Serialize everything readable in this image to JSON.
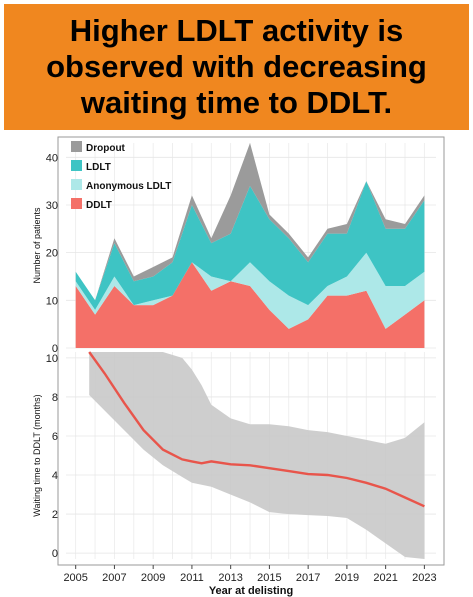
{
  "banner": {
    "lines": [
      "Higher LDLT activity is",
      "observed with decreasing",
      "waiting time to DDLT."
    ]
  },
  "colors": {
    "banner": "#f0871f",
    "dropout": "#9b9b9b",
    "ldlt": "#3ec4c4",
    "anonymous_ldlt": "#ade8e8",
    "ddlt": "#f47068",
    "trend": "#e8554b",
    "ribbon": "#c9c9c9"
  },
  "chart_data": [
    {
      "type": "area",
      "stacked": true,
      "ylabel": "Number of patients",
      "xlabel": "",
      "ylim": [
        0,
        43
      ],
      "yticks": [
        0,
        10,
        20,
        30,
        40
      ],
      "x": [
        2005,
        2006,
        2007,
        2008,
        2009,
        2010,
        2011,
        2012,
        2013,
        2014,
        2015,
        2016,
        2017,
        2018,
        2019,
        2020,
        2021,
        2022,
        2023
      ],
      "legend_position": "top-left",
      "series": [
        {
          "name": "DDLT",
          "color_key": "ddlt",
          "values": [
            13,
            7,
            13,
            9,
            9,
            11,
            18,
            12,
            14,
            13,
            8,
            4,
            6,
            11,
            11,
            12,
            4,
            7,
            10
          ]
        },
        {
          "name": "Anonymous LDLT",
          "color_key": "anonymous_ldlt",
          "values": [
            1,
            1,
            2,
            0,
            1,
            0,
            0,
            3,
            0,
            5,
            6,
            7,
            3,
            2,
            4,
            8,
            9,
            6,
            6
          ]
        },
        {
          "name": "LDLT",
          "color_key": "ldlt",
          "values": [
            2,
            2,
            7,
            5,
            5,
            7,
            12,
            7,
            10,
            16,
            13,
            12,
            9,
            11,
            9,
            15,
            12,
            12,
            15
          ]
        },
        {
          "name": "Dropout",
          "color_key": "dropout",
          "values": [
            0,
            0,
            1,
            1,
            2,
            1,
            2,
            1,
            8,
            9,
            1,
            1,
            1,
            1,
            2,
            0,
            2,
            1,
            1
          ]
        }
      ]
    },
    {
      "type": "line",
      "ylabel": "Waiting time to DDLT (months)",
      "xlabel": "Year at delisting",
      "ylim": [
        -0.3,
        10.3
      ],
      "yticks": [
        0,
        2,
        4,
        6,
        8,
        10
      ],
      "xlim": [
        2004.5,
        2023.6
      ],
      "xticks": [
        2005,
        2007,
        2009,
        2011,
        2013,
        2015,
        2017,
        2019,
        2021,
        2023
      ],
      "series": [
        {
          "name": "",
          "color_key": "trend",
          "x": [
            2005.7,
            2006.5,
            2007.5,
            2008.5,
            2009.5,
            2010.5,
            2011.0,
            2011.5,
            2012.0,
            2013.0,
            2014.0,
            2015.0,
            2016.0,
            2017.0,
            2018.0,
            2019.0,
            2020.0,
            2021.0,
            2022.0,
            2023.0
          ],
          "y": [
            10.3,
            9.2,
            7.7,
            6.3,
            5.3,
            4.8,
            4.7,
            4.6,
            4.7,
            4.55,
            4.5,
            4.35,
            4.2,
            4.05,
            4.0,
            3.85,
            3.6,
            3.3,
            2.85,
            2.4
          ],
          "ci_lower": [
            8.1,
            7.3,
            6.3,
            5.3,
            4.5,
            3.9,
            3.6,
            3.5,
            3.4,
            3.0,
            2.6,
            2.1,
            2.0,
            1.95,
            1.9,
            1.8,
            1.2,
            0.5,
            -0.2,
            -0.3
          ],
          "ci_upper": [
            10.3,
            10.3,
            10.3,
            10.3,
            10.3,
            10.0,
            9.4,
            8.6,
            7.6,
            6.9,
            6.6,
            6.6,
            6.5,
            6.3,
            6.2,
            6.0,
            5.8,
            5.6,
            5.9,
            6.7
          ]
        }
      ]
    }
  ]
}
